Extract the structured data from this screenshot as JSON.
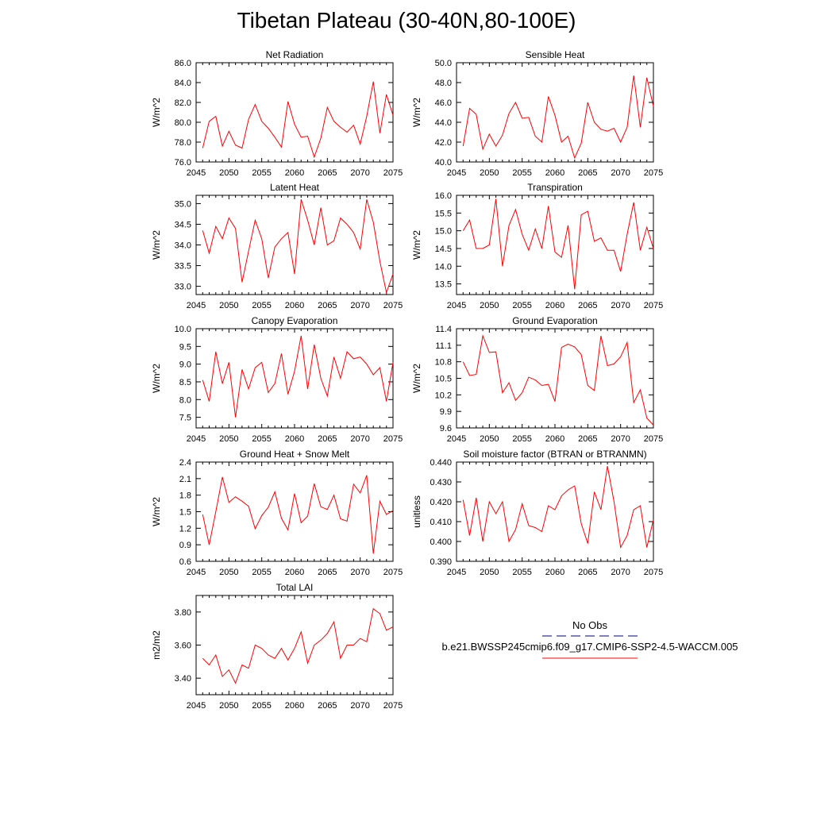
{
  "title": "Tibetan Plateau (30-40N,80-100E)",
  "colors": {
    "model": "#ff0000",
    "obs": "#000080",
    "axis": "#000000"
  },
  "legend": {
    "obs_label": "No Obs",
    "model_label": "b.e21.BWSSP245cmip6.f09_g17.CMIP6-SSP2-4.5-WACCM.005"
  },
  "chart_data": [
    {
      "type": "line",
      "title": "Net Radiation",
      "ylabel": "W/m^2",
      "xlim": [
        2045,
        2075
      ],
      "ylim": [
        76.0,
        86.0
      ],
      "xticks": [
        2045,
        2050,
        2055,
        2060,
        2065,
        2070,
        2075
      ],
      "yticks": [
        76.0,
        78.0,
        80.0,
        82.0,
        84.0,
        86.0
      ],
      "ydecimals": 1,
      "x": [
        2046,
        2047,
        2048,
        2049,
        2050,
        2051,
        2052,
        2053,
        2054,
        2055,
        2056,
        2057,
        2058,
        2059,
        2060,
        2061,
        2062,
        2063,
        2064,
        2065,
        2066,
        2067,
        2068,
        2069,
        2070,
        2071,
        2072,
        2073,
        2074,
        2075
      ],
      "series": [
        {
          "values": [
            77.4,
            80.1,
            80.6,
            77.6,
            79.1,
            77.7,
            77.4,
            80.3,
            81.8,
            80.1,
            79.4,
            78.5,
            77.5,
            82.1,
            79.8,
            78.5,
            78.6,
            76.5,
            78.4,
            81.5,
            80.1,
            79.5,
            79.0,
            79.7,
            77.8,
            80.6,
            84.1,
            78.9,
            82.8,
            80.7
          ]
        }
      ]
    },
    {
      "type": "line",
      "title": "Sensible Heat",
      "ylabel": "W/m^2",
      "xlim": [
        2045,
        2075
      ],
      "ylim": [
        40.0,
        50.0
      ],
      "xticks": [
        2045,
        2050,
        2055,
        2060,
        2065,
        2070,
        2075
      ],
      "yticks": [
        40.0,
        42.0,
        44.0,
        46.0,
        48.0,
        50.0
      ],
      "ydecimals": 1,
      "x": [
        2046,
        2047,
        2048,
        2049,
        2050,
        2051,
        2052,
        2053,
        2054,
        2055,
        2056,
        2057,
        2058,
        2059,
        2060,
        2061,
        2062,
        2063,
        2064,
        2065,
        2066,
        2067,
        2068,
        2069,
        2070,
        2071,
        2072,
        2073,
        2074,
        2075
      ],
      "series": [
        {
          "values": [
            41.6,
            45.4,
            44.8,
            41.3,
            42.8,
            41.6,
            42.7,
            44.9,
            46.0,
            44.4,
            44.5,
            42.6,
            42.0,
            46.6,
            44.7,
            42.0,
            42.6,
            40.4,
            41.9,
            46.0,
            44.0,
            43.3,
            43.1,
            43.4,
            42.0,
            43.5,
            48.7,
            43.5,
            48.5,
            45.6
          ]
        }
      ]
    },
    {
      "type": "line",
      "title": "Latent Heat",
      "ylabel": "W/m^2",
      "xlim": [
        2045,
        2075
      ],
      "ylim": [
        32.8,
        35.2
      ],
      "xticks": [
        2045,
        2050,
        2055,
        2060,
        2065,
        2070,
        2075
      ],
      "yticks": [
        33.0,
        33.5,
        34.0,
        34.5,
        35.0
      ],
      "ydecimals": 1,
      "x": [
        2046,
        2047,
        2048,
        2049,
        2050,
        2051,
        2052,
        2053,
        2054,
        2055,
        2056,
        2057,
        2058,
        2059,
        2060,
        2061,
        2062,
        2063,
        2064,
        2065,
        2066,
        2067,
        2068,
        2069,
        2070,
        2071,
        2072,
        2073,
        2074,
        2075
      ],
      "series": [
        {
          "values": [
            34.35,
            33.8,
            34.45,
            34.15,
            34.65,
            34.4,
            33.1,
            33.85,
            34.6,
            34.15,
            33.2,
            33.95,
            34.15,
            34.3,
            33.3,
            35.1,
            34.6,
            34.0,
            34.9,
            34.0,
            34.1,
            34.65,
            34.5,
            34.3,
            33.9,
            35.1,
            34.55,
            33.6,
            32.85,
            33.3
          ]
        }
      ]
    },
    {
      "type": "line",
      "title": "Transpiration",
      "ylabel": "W/m^2",
      "xlim": [
        2045,
        2075
      ],
      "ylim": [
        13.2,
        16.0
      ],
      "xticks": [
        2045,
        2050,
        2055,
        2060,
        2065,
        2070,
        2075
      ],
      "yticks": [
        13.5,
        14.0,
        14.5,
        15.0,
        15.5,
        16.0
      ],
      "ydecimals": 1,
      "x": [
        2046,
        2047,
        2048,
        2049,
        2050,
        2051,
        2052,
        2053,
        2054,
        2055,
        2056,
        2057,
        2058,
        2059,
        2060,
        2061,
        2062,
        2063,
        2064,
        2065,
        2066,
        2067,
        2068,
        2069,
        2070,
        2071,
        2072,
        2073,
        2074,
        2075
      ],
      "series": [
        {
          "values": [
            15.0,
            15.3,
            14.5,
            14.5,
            14.6,
            15.9,
            14.0,
            15.15,
            15.6,
            14.9,
            14.45,
            15.05,
            14.5,
            15.7,
            14.4,
            14.25,
            15.15,
            13.35,
            15.45,
            15.55,
            14.7,
            14.8,
            14.45,
            14.45,
            13.85,
            14.9,
            15.8,
            14.45,
            15.1,
            14.5
          ]
        }
      ]
    },
    {
      "type": "line",
      "title": "Canopy Evaporation",
      "ylabel": "W/m^2",
      "xlim": [
        2045,
        2075
      ],
      "ylim": [
        7.2,
        10.0
      ],
      "xticks": [
        2045,
        2050,
        2055,
        2060,
        2065,
        2070,
        2075
      ],
      "yticks": [
        7.5,
        8.0,
        8.5,
        9.0,
        9.5,
        10.0
      ],
      "ydecimals": 1,
      "x": [
        2046,
        2047,
        2048,
        2049,
        2050,
        2051,
        2052,
        2053,
        2054,
        2055,
        2056,
        2057,
        2058,
        2059,
        2060,
        2061,
        2062,
        2063,
        2064,
        2065,
        2066,
        2067,
        2068,
        2069,
        2070,
        2071,
        2072,
        2073,
        2074,
        2075
      ],
      "series": [
        {
          "values": [
            8.55,
            7.95,
            9.35,
            8.45,
            9.05,
            7.5,
            8.85,
            8.3,
            8.9,
            9.05,
            8.2,
            8.45,
            9.3,
            8.15,
            8.8,
            9.8,
            8.3,
            9.55,
            8.6,
            8.1,
            9.2,
            8.6,
            9.35,
            9.15,
            9.2,
            9.0,
            8.7,
            8.9,
            7.95,
            9.05
          ]
        }
      ]
    },
    {
      "type": "line",
      "title": "Ground Evaporation",
      "ylabel": "W/m^2",
      "xlim": [
        2045,
        2075
      ],
      "ylim": [
        9.6,
        11.4
      ],
      "xticks": [
        2045,
        2050,
        2055,
        2060,
        2065,
        2070,
        2075
      ],
      "yticks": [
        9.6,
        9.9,
        10.2,
        10.5,
        10.8,
        11.1,
        11.4
      ],
      "ydecimals": 1,
      "x": [
        2046,
        2047,
        2048,
        2049,
        2050,
        2051,
        2052,
        2053,
        2054,
        2055,
        2056,
        2057,
        2058,
        2059,
        2060,
        2061,
        2062,
        2063,
        2064,
        2065,
        2066,
        2067,
        2068,
        2069,
        2070,
        2071,
        2072,
        2073,
        2074,
        2075
      ],
      "series": [
        {
          "values": [
            10.8,
            10.55,
            10.57,
            11.27,
            10.97,
            10.98,
            10.24,
            10.42,
            10.1,
            10.24,
            10.52,
            10.47,
            10.37,
            10.39,
            10.08,
            11.06,
            11.12,
            11.07,
            10.93,
            10.37,
            10.28,
            11.27,
            10.73,
            10.76,
            10.89,
            11.15,
            10.06,
            10.29,
            9.78,
            9.65
          ]
        }
      ]
    },
    {
      "type": "line",
      "title": "Ground Heat + Snow Melt",
      "ylabel": "W/m^2",
      "xlim": [
        2045,
        2075
      ],
      "ylim": [
        0.6,
        2.4
      ],
      "xticks": [
        2045,
        2050,
        2055,
        2060,
        2065,
        2070,
        2075
      ],
      "yticks": [
        0.6,
        0.9,
        1.2,
        1.5,
        1.8,
        2.1,
        2.4
      ],
      "ydecimals": 1,
      "x": [
        2046,
        2047,
        2048,
        2049,
        2050,
        2051,
        2052,
        2053,
        2054,
        2055,
        2056,
        2057,
        2058,
        2059,
        2060,
        2061,
        2062,
        2063,
        2064,
        2065,
        2066,
        2067,
        2068,
        2069,
        2070,
        2071,
        2072,
        2073,
        2074,
        2075
      ],
      "series": [
        {
          "values": [
            1.45,
            0.9,
            1.5,
            2.13,
            1.67,
            1.77,
            1.69,
            1.6,
            1.19,
            1.43,
            1.58,
            1.86,
            1.38,
            1.17,
            1.83,
            1.3,
            1.42,
            2.01,
            1.59,
            1.54,
            1.8,
            1.37,
            1.33,
            2.0,
            1.84,
            2.16,
            0.74,
            1.69,
            1.45,
            1.52
          ]
        }
      ]
    },
    {
      "type": "line",
      "title": "Soil moisture factor (BTRAN or BTRANMN)",
      "ylabel": "unitless",
      "xlim": [
        2045,
        2075
      ],
      "ylim": [
        0.39,
        0.44
      ],
      "xticks": [
        2045,
        2050,
        2055,
        2060,
        2065,
        2070,
        2075
      ],
      "yticks": [
        0.39,
        0.4,
        0.41,
        0.42,
        0.43,
        0.44
      ],
      "ydecimals": 3,
      "x": [
        2046,
        2047,
        2048,
        2049,
        2050,
        2051,
        2052,
        2053,
        2054,
        2055,
        2056,
        2057,
        2058,
        2059,
        2060,
        2061,
        2062,
        2063,
        2064,
        2065,
        2066,
        2067,
        2068,
        2069,
        2070,
        2071,
        2072,
        2073,
        2074,
        2075
      ],
      "series": [
        {
          "values": [
            0.421,
            0.403,
            0.422,
            0.4,
            0.42,
            0.414,
            0.42,
            0.4,
            0.406,
            0.419,
            0.408,
            0.407,
            0.405,
            0.418,
            0.416,
            0.423,
            0.426,
            0.428,
            0.409,
            0.399,
            0.425,
            0.416,
            0.438,
            0.42,
            0.397,
            0.403,
            0.416,
            0.418,
            0.397,
            0.411
          ]
        }
      ]
    },
    {
      "type": "line",
      "title": "Total LAI",
      "ylabel": "m2/m2",
      "xlim": [
        2045,
        2075
      ],
      "ylim": [
        3.3,
        3.9
      ],
      "xticks": [
        2045,
        2050,
        2055,
        2060,
        2065,
        2070,
        2075
      ],
      "yticks": [
        3.4,
        3.6,
        3.8
      ],
      "ydecimals": 2,
      "x": [
        2046,
        2047,
        2048,
        2049,
        2050,
        2051,
        2052,
        2053,
        2054,
        2055,
        2056,
        2057,
        2058,
        2059,
        2060,
        2061,
        2062,
        2063,
        2064,
        2065,
        2066,
        2067,
        2068,
        2069,
        2070,
        2071,
        2072,
        2073,
        2074,
        2075
      ],
      "series": [
        {
          "values": [
            3.52,
            3.48,
            3.54,
            3.41,
            3.45,
            3.37,
            3.48,
            3.46,
            3.6,
            3.58,
            3.54,
            3.52,
            3.58,
            3.51,
            3.58,
            3.68,
            3.49,
            3.6,
            3.63,
            3.67,
            3.74,
            3.52,
            3.6,
            3.6,
            3.64,
            3.62,
            3.82,
            3.79,
            3.69,
            3.71
          ]
        }
      ]
    }
  ]
}
